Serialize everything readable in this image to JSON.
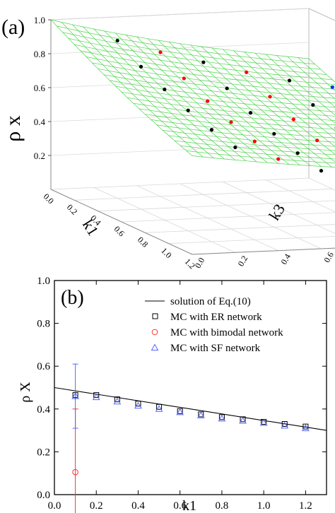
{
  "chart_data": [
    {
      "panel": "(a)",
      "type": "scatter",
      "subtype": "3d-surface-with-points",
      "zlabel": "ρ x",
      "xlabel": "k1",
      "ylabel": "k3",
      "x_ticks": [
        "0.0",
        "0.2",
        "0.4",
        "0.6",
        "0.8",
        "1.0",
        "1.2"
      ],
      "y_ticks": [
        "0.0",
        "0.2",
        "0.4",
        "0.6",
        "0.8",
        "1.0",
        "1.2"
      ],
      "z_ticks": [
        "0.2",
        "0.4",
        "0.6",
        "0.8",
        "1.0"
      ],
      "xlim": [
        0,
        1.2
      ],
      "ylim": [
        0,
        1.2
      ],
      "zlim": [
        0,
        1.0
      ],
      "surface_color": "#33cc33",
      "series": [
        {
          "color": "#000000",
          "points": [
            {
              "k1": 0.2,
              "k3": 0.2,
              "rho": 0.93
            },
            {
              "k1": 0.4,
              "k3": 0.2,
              "rho": 0.84
            },
            {
              "k1": 0.6,
              "k3": 0.2,
              "rho": 0.77
            },
            {
              "k1": 0.8,
              "k3": 0.2,
              "rho": 0.71
            },
            {
              "k1": 1.0,
              "k3": 0.2,
              "rho": 0.66
            },
            {
              "k1": 1.2,
              "k3": 0.2,
              "rho": 0.62
            },
            {
              "k1": 0.2,
              "k3": 0.6,
              "rho": 0.78
            },
            {
              "k1": 0.4,
              "k3": 0.6,
              "rho": 0.69
            },
            {
              "k1": 0.6,
              "k3": 0.6,
              "rho": 0.61
            },
            {
              "k1": 0.8,
              "k3": 0.6,
              "rho": 0.55
            },
            {
              "k1": 1.0,
              "k3": 0.6,
              "rho": 0.5
            },
            {
              "k1": 1.2,
              "k3": 0.6,
              "rho": 0.46
            },
            {
              "k1": 0.2,
              "k3": 1.0,
              "rho": 0.65
            },
            {
              "k1": 0.4,
              "k3": 1.0,
              "rho": 0.57
            },
            {
              "k1": 0.6,
              "k3": 1.0,
              "rho": 0.5
            },
            {
              "k1": 0.8,
              "k3": 1.0,
              "rho": 0.45
            },
            {
              "k1": 1.0,
              "k3": 1.0,
              "rho": 0.41
            },
            {
              "k1": 1.2,
              "k3": 1.0,
              "rho": 0.38
            }
          ]
        },
        {
          "color": "#ff0000",
          "points": [
            {
              "k1": 0.2,
              "k3": 0.4,
              "rho": 0.85
            },
            {
              "k1": 0.4,
              "k3": 0.4,
              "rho": 0.76
            },
            {
              "k1": 0.6,
              "k3": 0.4,
              "rho": 0.69
            },
            {
              "k1": 0.8,
              "k3": 0.4,
              "rho": 0.63
            },
            {
              "k1": 1.0,
              "k3": 0.4,
              "rho": 0.58
            },
            {
              "k1": 1.2,
              "k3": 0.4,
              "rho": 0.54
            },
            {
              "k1": 0.2,
              "k3": 0.8,
              "rho": 0.71
            },
            {
              "k1": 0.4,
              "k3": 0.8,
              "rho": 0.63
            },
            {
              "k1": 0.6,
              "k3": 0.8,
              "rho": 0.56
            },
            {
              "k1": 0.8,
              "k3": 0.8,
              "rho": 0.5
            },
            {
              "k1": 1.0,
              "k3": 0.8,
              "rho": 0.46
            },
            {
              "k1": 1.2,
              "k3": 0.8,
              "rho": 0.42
            }
          ]
        },
        {
          "color": "#0033ff",
          "points": [
            {
              "k1": 0.2,
              "k3": 1.2,
              "rho": 0.6
            },
            {
              "k1": 0.4,
              "k3": 1.2,
              "rho": 0.52
            },
            {
              "k1": 0.6,
              "k3": 1.2,
              "rho": 0.46
            },
            {
              "k1": 0.8,
              "k3": 1.2,
              "rho": 0.41
            },
            {
              "k1": 1.0,
              "k3": 1.2,
              "rho": 0.37
            },
            {
              "k1": 1.2,
              "k3": 1.2,
              "rho": 0.34
            }
          ]
        }
      ]
    },
    {
      "panel": "(b)",
      "type": "line",
      "xlabel": "k1",
      "ylabel": "ρ X",
      "xlim": [
        0,
        1.3
      ],
      "ylim": [
        0,
        1.0
      ],
      "x_ticks": [
        "0.0",
        "0.2",
        "0.4",
        "0.6",
        "0.8",
        "1.0",
        "1.2"
      ],
      "y_ticks": [
        "0.0",
        "0.2",
        "0.4",
        "0.6",
        "0.8",
        "1.0"
      ],
      "legend_position": "top-right",
      "series": [
        {
          "name": "solution of Eq.(10)",
          "kind": "line",
          "color": "#000000",
          "x": [
            0,
            1.3
          ],
          "y": [
            0.5,
            0.3
          ]
        },
        {
          "name": "MC with ER network",
          "kind": "square",
          "color": "#000000",
          "x": [
            0.1,
            0.2,
            0.3,
            0.4,
            0.5,
            0.6,
            0.7,
            0.8,
            0.9,
            1.0,
            1.1,
            1.2
          ],
          "y": [
            0.465,
            0.465,
            0.445,
            0.425,
            0.41,
            0.39,
            0.375,
            0.362,
            0.352,
            0.34,
            0.33,
            0.318
          ],
          "error": [
            0,
            0,
            0,
            0,
            0,
            0,
            0,
            0,
            0,
            0,
            0,
            0
          ]
        },
        {
          "name": "MC with bimodal network",
          "kind": "circle",
          "color": "#ff3333",
          "x": [
            0.1
          ],
          "y": [
            0.105
          ],
          "error": [
            0.295
          ]
        },
        {
          "name": "MC with SF network",
          "kind": "triangle",
          "color": "#5566ff",
          "x": [
            0.1,
            0.2,
            0.3,
            0.4,
            0.5,
            0.6,
            0.7,
            0.8,
            0.9,
            1.0,
            1.1,
            1.2
          ],
          "y": [
            0.46,
            0.455,
            0.435,
            0.415,
            0.4,
            0.385,
            0.37,
            0.355,
            0.345,
            0.335,
            0.322,
            0.31
          ],
          "error": [
            0.15,
            0,
            0,
            0,
            0,
            0,
            0,
            0,
            0,
            0,
            0,
            0
          ]
        }
      ]
    }
  ]
}
